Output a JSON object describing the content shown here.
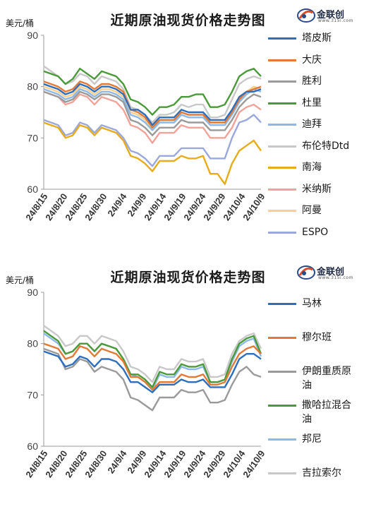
{
  "chart_data": [
    {
      "type": "line",
      "title": "近期原油现货价格走势图",
      "ylabel": "美元/桶",
      "ylim": [
        60,
        90
      ],
      "yticks": [
        "60",
        "70",
        "80",
        "90"
      ],
      "xticks": [
        "24/8/15",
        "24/8/20",
        "24/8/25",
        "24/8/30",
        "24/9/4",
        "24/9/9",
        "24/9/14",
        "24/9/19",
        "24/9/24",
        "24/9/29",
        "24/10/4",
        "24/10/9"
      ],
      "legend_position": "right",
      "logo_text": "金联创",
      "logo_sub": "www.315i.com",
      "series": [
        {
          "name": "塔皮斯",
          "color": "#2e6fbd",
          "values": [
            80.5,
            80.0,
            79.5,
            78.5,
            79.0,
            80.5,
            80.0,
            79.0,
            80.0,
            80.0,
            79.5,
            78.5,
            75.5,
            75.5,
            74.5,
            72.5,
            74.0,
            74.0,
            74.0,
            75.5,
            75.0,
            75.0,
            75.0,
            73.5,
            73.5,
            73.5,
            75.5,
            78.0,
            79.0,
            79.0,
            79.5
          ]
        },
        {
          "name": "大庆",
          "color": "#e27a36",
          "values": [
            81.0,
            80.5,
            80.0,
            79.0,
            79.5,
            81.0,
            80.5,
            79.5,
            80.5,
            80.5,
            80.0,
            79.0,
            75.5,
            75.0,
            74.0,
            72.0,
            73.5,
            73.5,
            73.5,
            75.0,
            74.5,
            74.5,
            74.5,
            73.0,
            73.0,
            73.0,
            75.0,
            77.5,
            79.0,
            79.5,
            80.0
          ]
        },
        {
          "name": "胜利",
          "color": "#9a9a9a",
          "values": [
            79.0,
            78.5,
            78.0,
            77.0,
            77.5,
            79.0,
            78.5,
            77.5,
            78.5,
            78.5,
            78.0,
            77.0,
            73.5,
            73.0,
            72.0,
            70.5,
            72.0,
            72.0,
            72.0,
            73.5,
            73.0,
            73.0,
            73.0,
            71.5,
            71.5,
            71.5,
            73.5,
            76.0,
            77.5,
            78.5,
            78.0
          ]
        },
        {
          "name": "杜里",
          "color": "#4a9a3a",
          "values": [
            83.0,
            82.5,
            82.0,
            80.5,
            81.5,
            83.5,
            82.5,
            81.5,
            83.0,
            82.5,
            82.0,
            80.5,
            77.5,
            77.0,
            76.0,
            74.5,
            76.0,
            76.0,
            76.5,
            78.0,
            78.0,
            78.5,
            78.5,
            76.0,
            76.0,
            76.5,
            79.0,
            82.0,
            83.0,
            83.5,
            82.0
          ]
        },
        {
          "name": "迪拜",
          "color": "#8cb9e8",
          "values": [
            79.5,
            79.0,
            78.5,
            77.5,
            78.0,
            79.5,
            79.0,
            78.0,
            79.0,
            79.0,
            78.5,
            77.5,
            74.5,
            74.0,
            73.0,
            71.5,
            73.0,
            73.0,
            73.0,
            74.5,
            74.0,
            74.0,
            74.0,
            72.5,
            72.5,
            72.5,
            74.5,
            77.0,
            78.5,
            79.5,
            79.0
          ]
        },
        {
          "name": "布伦特Dtd",
          "color": "#c8c8c8",
          "values": [
            84.0,
            83.0,
            82.0,
            80.5,
            81.0,
            82.5,
            82.0,
            80.5,
            82.0,
            81.5,
            81.0,
            79.5,
            76.0,
            75.5,
            74.5,
            73.0,
            74.5,
            74.5,
            75.0,
            76.5,
            76.0,
            76.5,
            76.5,
            74.0,
            74.0,
            74.5,
            77.5,
            80.5,
            81.5,
            82.0,
            81.5
          ]
        },
        {
          "name": "南海",
          "color": "#e6ac1c",
          "values": [
            73.0,
            72.5,
            72.0,
            70.0,
            70.5,
            72.5,
            72.0,
            70.5,
            72.0,
            71.5,
            71.0,
            69.5,
            66.5,
            66.0,
            65.0,
            63.5,
            65.5,
            65.5,
            65.5,
            66.5,
            66.0,
            66.0,
            66.5,
            63.0,
            63.0,
            61.0,
            65.0,
            67.5,
            68.5,
            69.5,
            67.5
          ]
        },
        {
          "name": "米纳斯",
          "color": "#f2a299",
          "values": [
            79.0,
            78.5,
            78.0,
            76.5,
            77.0,
            78.5,
            78.0,
            76.5,
            78.0,
            77.5,
            77.0,
            75.5,
            72.5,
            72.0,
            71.0,
            69.0,
            71.0,
            71.0,
            71.0,
            72.5,
            72.0,
            72.0,
            72.0,
            70.0,
            70.0,
            70.0,
            72.0,
            75.0,
            76.0,
            76.5,
            75.5
          ]
        },
        {
          "name": "阿曼",
          "color": "#fbcf8e",
          "values": [
            80.0,
            79.5,
            79.0,
            78.0,
            78.5,
            80.0,
            79.5,
            78.5,
            79.5,
            79.5,
            79.0,
            78.0,
            75.0,
            74.5,
            73.5,
            72.0,
            73.5,
            73.5,
            73.5,
            75.0,
            74.5,
            74.5,
            74.5,
            73.0,
            73.0,
            73.0,
            75.0,
            77.5,
            79.0,
            80.0,
            79.5
          ]
        },
        {
          "name": "ESPO",
          "color": "#9aa8dc",
          "values": [
            73.5,
            73.0,
            72.5,
            70.5,
            71.0,
            73.0,
            72.5,
            71.0,
            72.5,
            72.0,
            71.5,
            70.0,
            67.5,
            67.0,
            66.0,
            64.5,
            66.5,
            66.5,
            66.5,
            68.0,
            68.0,
            68.0,
            68.0,
            66.0,
            66.0,
            66.0,
            70.0,
            73.0,
            73.5,
            74.5,
            73.0
          ]
        }
      ]
    },
    {
      "type": "line",
      "title": "近期原油现货价格走势图",
      "ylabel": "美元/桶",
      "ylim": [
        60,
        90
      ],
      "yticks": [
        "60",
        "70",
        "80",
        "90"
      ],
      "xticks": [
        "24/8/15",
        "24/8/20",
        "24/8/25",
        "24/8/30",
        "24/9/4",
        "24/9/9",
        "24/9/14",
        "24/9/19",
        "24/9/24",
        "24/9/29",
        "24/10/4",
        "24/10/9"
      ],
      "legend_position": "right",
      "logo_text": "金联创",
      "logo_sub": "www.315i.com",
      "series": [
        {
          "name": "马林",
          "color": "#2e6fbd",
          "values": [
            78.5,
            78.0,
            77.5,
            75.5,
            76.0,
            77.5,
            77.0,
            75.5,
            77.0,
            77.0,
            76.5,
            75.0,
            72.5,
            72.5,
            71.5,
            70.5,
            72.0,
            72.0,
            72.0,
            73.0,
            72.5,
            72.5,
            73.0,
            71.5,
            71.5,
            71.5,
            74.0,
            77.0,
            78.0,
            78.0,
            77.0
          ]
        },
        {
          "name": "穆尔班",
          "color": "#e27a36",
          "values": [
            80.0,
            79.5,
            79.0,
            77.0,
            77.5,
            79.5,
            79.0,
            77.5,
            79.0,
            78.5,
            78.0,
            76.5,
            73.5,
            73.5,
            72.5,
            71.0,
            72.5,
            72.5,
            72.5,
            74.0,
            73.5,
            73.5,
            74.0,
            72.0,
            72.0,
            72.5,
            75.5,
            78.0,
            79.0,
            79.5,
            78.0
          ]
        },
        {
          "name": "伊朗重质原油",
          "color": "#9a9a9a",
          "values": [
            79.0,
            78.5,
            78.0,
            75.0,
            75.5,
            77.0,
            76.5,
            74.5,
            75.5,
            75.0,
            74.5,
            73.0,
            69.5,
            69.0,
            68.0,
            67.0,
            69.5,
            69.5,
            69.5,
            71.0,
            70.5,
            70.5,
            71.0,
            68.5,
            68.5,
            69.0,
            72.0,
            74.5,
            75.5,
            74.0,
            73.5
          ]
        },
        {
          "name": "撒哈拉混合油",
          "color": "#4a9a3a",
          "values": [
            82.5,
            81.5,
            80.5,
            78.0,
            78.5,
            80.0,
            80.0,
            78.5,
            80.0,
            79.5,
            79.0,
            77.0,
            74.0,
            74.0,
            73.0,
            71.5,
            74.5,
            74.0,
            74.0,
            76.0,
            75.5,
            75.5,
            76.0,
            72.5,
            72.5,
            73.0,
            77.0,
            80.0,
            81.0,
            81.5,
            78.0
          ]
        },
        {
          "name": "邦尼",
          "color": "#8cb9e8",
          "values": [
            82.0,
            81.0,
            80.0,
            78.0,
            78.5,
            80.0,
            80.0,
            78.5,
            80.0,
            79.5,
            79.0,
            77.0,
            74.0,
            73.5,
            72.5,
            71.0,
            74.0,
            73.5,
            73.5,
            75.5,
            75.0,
            75.0,
            75.5,
            72.5,
            72.5,
            73.0,
            76.5,
            79.5,
            80.5,
            81.0,
            77.5
          ]
        },
        {
          "name": "吉拉索尔",
          "color": "#c8c8c8",
          "values": [
            83.5,
            82.5,
            81.5,
            79.5,
            80.0,
            81.5,
            81.5,
            80.0,
            81.5,
            81.0,
            80.5,
            78.5,
            75.5,
            75.0,
            74.0,
            72.5,
            75.5,
            75.0,
            75.0,
            77.0,
            76.5,
            76.5,
            77.0,
            73.5,
            73.5,
            74.0,
            78.0,
            80.5,
            81.5,
            82.0,
            79.0
          ]
        }
      ]
    }
  ]
}
